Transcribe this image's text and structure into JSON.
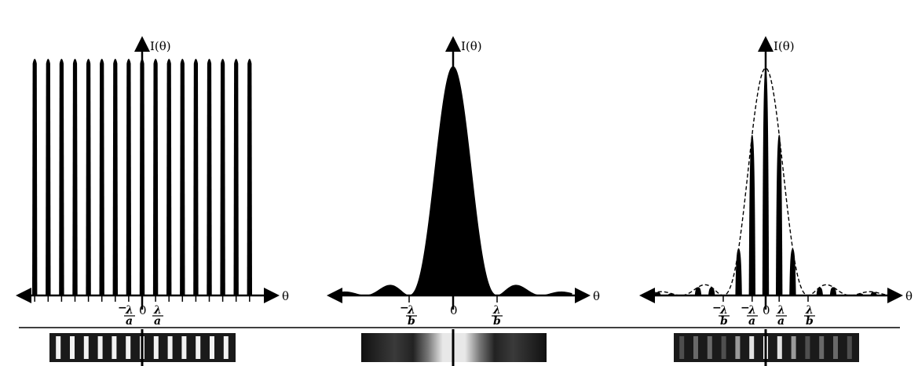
{
  "panels": [
    {
      "id": "grating",
      "y_axis_label": "I(θ)",
      "x_axis_label": "θ",
      "ticks": [
        {
          "sign": "−",
          "num": "λ",
          "den": "a"
        },
        {
          "text": "0"
        },
        {
          "sign": "",
          "num": "λ",
          "den": "a"
        }
      ]
    },
    {
      "id": "single-slit",
      "y_axis_label": "I(θ)",
      "x_axis_label": "θ",
      "ticks": [
        {
          "sign": "−",
          "num": "λ",
          "den": "b"
        },
        {
          "text": "0"
        },
        {
          "sign": "",
          "num": "λ",
          "den": "b"
        }
      ]
    },
    {
      "id": "combined",
      "y_axis_label": "I(θ)",
      "x_axis_label": "θ",
      "ticks": [
        {
          "sign": "−",
          "num": "λ",
          "den": "b"
        },
        {
          "sign": "−",
          "num": "λ",
          "den": "a"
        },
        {
          "text": "0"
        },
        {
          "sign": "",
          "num": "λ",
          "den": "a"
        },
        {
          "sign": "",
          "num": "λ",
          "den": "b"
        }
      ]
    }
  ]
}
